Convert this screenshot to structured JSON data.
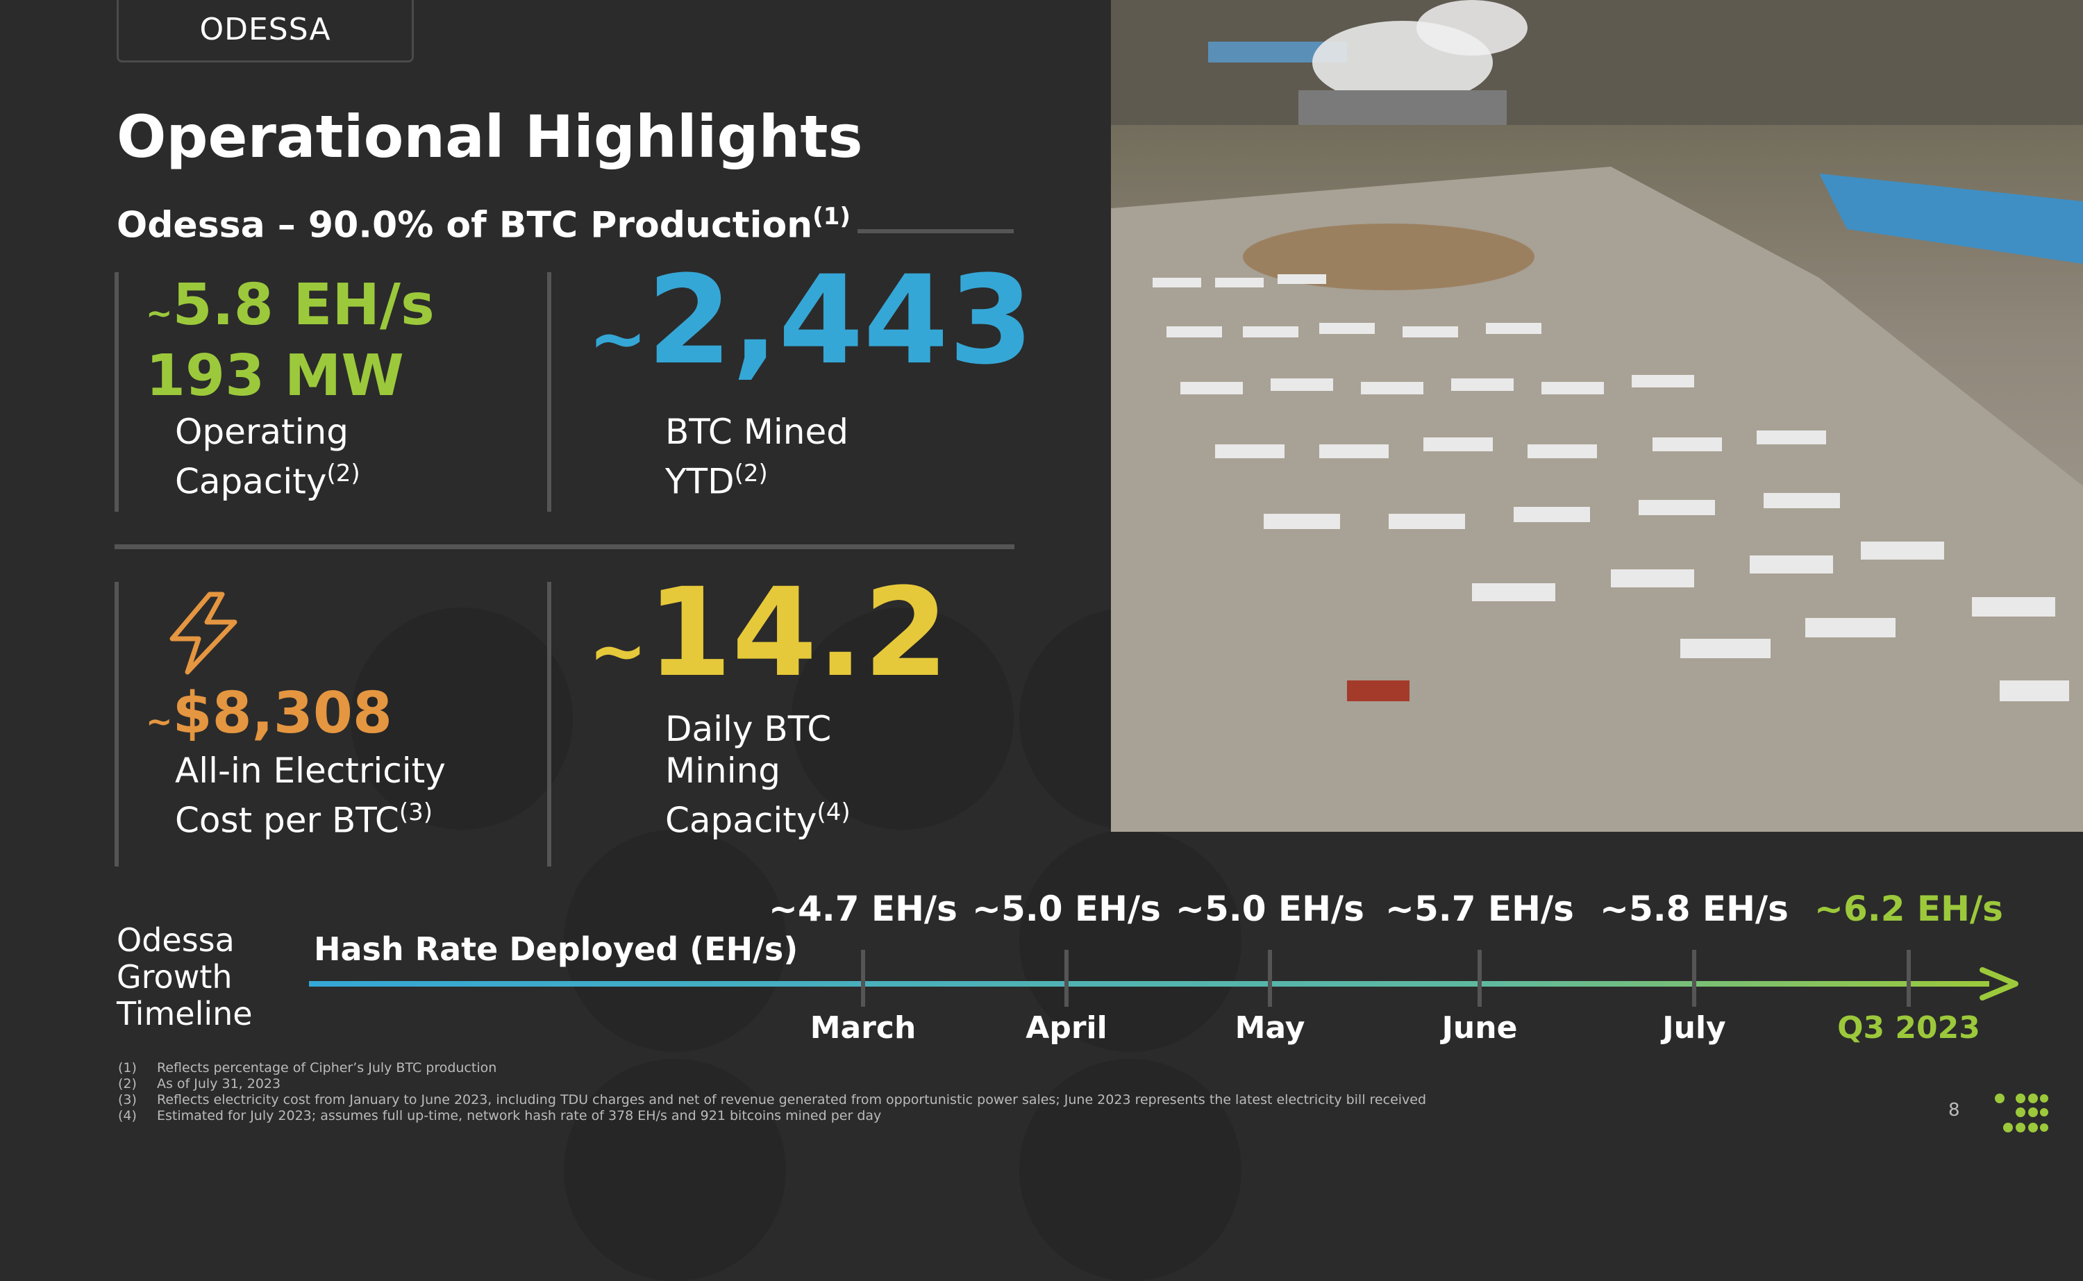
{
  "header": {
    "tag": "ODESSA",
    "title": "Operational Highlights",
    "subtitle": "Odessa – 90.0% of BTC Production",
    "subtitle_note": "(1)"
  },
  "metrics": {
    "hashrate": {
      "tilde": "~",
      "value": "5.8 EH/s"
    },
    "power": {
      "value": "193 MW"
    },
    "operating": {
      "line1": "Operating",
      "line2": "Capacity",
      "note": "(2)"
    },
    "btc_mined": {
      "tilde": "~",
      "value": "2,443",
      "line1": "BTC Mined",
      "line2": "YTD",
      "note": "(2)"
    },
    "electricity": {
      "tilde": "~",
      "value": "$8,308",
      "line1": "All-in Electricity",
      "line2": "Cost per BTC",
      "note": "(3)"
    },
    "daily": {
      "tilde": "~",
      "value": "14.2",
      "line1": "Daily BTC",
      "line2": "Mining",
      "line3": "Capacity",
      "note": "(4)"
    }
  },
  "timeline": {
    "label_line1": "Odessa",
    "label_line2": "Growth",
    "label_line3": "Timeline",
    "axis_label": "Hash Rate Deployed (EH/s)",
    "points": [
      {
        "value": "~4.7 EH/s",
        "month": "March"
      },
      {
        "value": "~5.0 EH/s",
        "month": "April"
      },
      {
        "value": "~5.0 EH/s",
        "month": "May"
      },
      {
        "value": "~5.7 EH/s",
        "month": "June"
      },
      {
        "value": "~5.8 EH/s",
        "month": "July"
      },
      {
        "value": "~6.2 EH/s",
        "month": "Q3 2023"
      }
    ]
  },
  "footnotes": [
    {
      "num": "(1)",
      "text": "Reflects percentage of Cipher’s July BTC production"
    },
    {
      "num": "(2)",
      "text": "As of July 31, 2023"
    },
    {
      "num": "(3)",
      "text": "Reflects electricity cost from January to June 2023, including TDU charges and net of revenue generated from opportunistic power sales; June 2023 represents the latest electricity bill received"
    },
    {
      "num": "(4)",
      "text": "Estimated for July 2023; assumes full up-time, network hash rate of 378 EH/s and 921 bitcoins mined per day"
    }
  ],
  "page_number": "8",
  "colors": {
    "green": "#9cc93b",
    "blue": "#35a7d6",
    "orange": "#e59640",
    "yellow": "#e6c93a",
    "background": "#2b2b2b"
  },
  "icons": {
    "bolt": "lightning-bolt-icon",
    "logo": "cipher-logo-icon"
  }
}
